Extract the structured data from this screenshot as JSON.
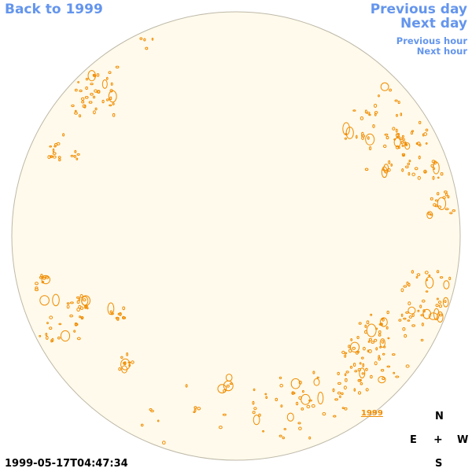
{
  "nav": {
    "back_label": "Back to 1999",
    "previous_day_label": "Previous day",
    "next_day_label": "Next day",
    "previous_hour_label": "Previous hour",
    "next_hour_label": "Next hour"
  },
  "observation": {
    "timestamp": "1999-05-17T04:47:34",
    "region_label": "1999"
  },
  "compass": {
    "north": "N",
    "east": "E",
    "center": "+",
    "west": "W",
    "south": "S"
  },
  "colors": {
    "disk_fill": "#fffaeb",
    "disk_edge": "#bdb8a8",
    "contour": "#f08c00",
    "link": "#6495ed"
  },
  "icons": {
    "compass_center": "plus-icon"
  }
}
